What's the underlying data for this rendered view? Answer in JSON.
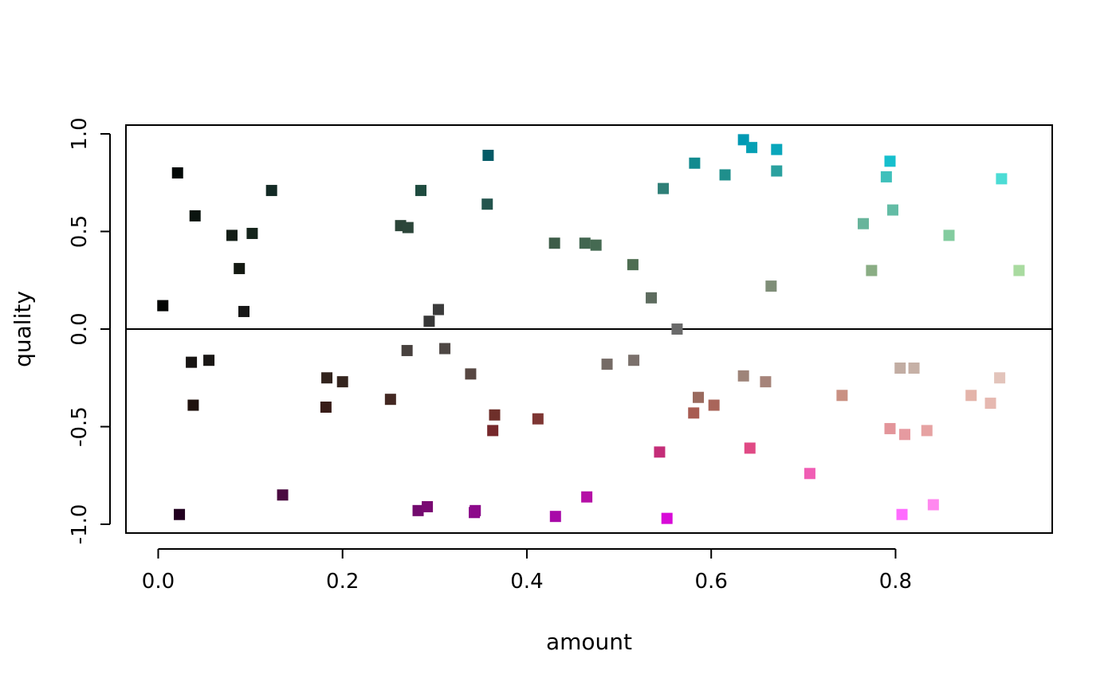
{
  "chart_data": {
    "type": "scatter",
    "title": "",
    "xlabel": "amount",
    "ylabel": "quality",
    "xlim": [
      -0.035,
      0.97
    ],
    "ylim": [
      -1.045,
      1.045
    ],
    "x_ticks": [
      0.0,
      0.2,
      0.4,
      0.6,
      0.8
    ],
    "x_tick_labels": [
      "0.0",
      "0.2",
      "0.4",
      "0.6",
      "0.8"
    ],
    "y_ticks": [
      -1.0,
      -0.5,
      0.0,
      0.5,
      1.0
    ],
    "y_tick_labels": [
      "-1.0",
      "-0.5",
      "0.0",
      "0.5",
      "1.0"
    ],
    "grid": false,
    "reference_line_y": 0,
    "marker": "square",
    "points": [
      {
        "x": 0.005,
        "y": 0.12,
        "color": "#020403"
      },
      {
        "x": 0.021,
        "y": 0.8,
        "color": "#030807"
      },
      {
        "x": 0.04,
        "y": 0.58,
        "color": "#0b140f"
      },
      {
        "x": 0.08,
        "y": 0.48,
        "color": "#131d16"
      },
      {
        "x": 0.088,
        "y": 0.31,
        "color": "#141912"
      },
      {
        "x": 0.093,
        "y": 0.09,
        "color": "#171717"
      },
      {
        "x": 0.102,
        "y": 0.49,
        "color": "#15241b"
      },
      {
        "x": 0.123,
        "y": 0.71,
        "color": "#132a25"
      },
      {
        "x": 0.263,
        "y": 0.53,
        "color": "#2b4438"
      },
      {
        "x": 0.271,
        "y": 0.52,
        "color": "#2c463a"
      },
      {
        "x": 0.285,
        "y": 0.71,
        "color": "#1e4b3f"
      },
      {
        "x": 0.294,
        "y": 0.04,
        "color": "#383838"
      },
      {
        "x": 0.304,
        "y": 0.1,
        "color": "#3b3b3b"
      },
      {
        "x": 0.358,
        "y": 0.89,
        "color": "#045a66"
      },
      {
        "x": 0.357,
        "y": 0.64,
        "color": "#24544d"
      },
      {
        "x": 0.43,
        "y": 0.44,
        "color": "#3d5c48"
      },
      {
        "x": 0.463,
        "y": 0.44,
        "color": "#426650"
      },
      {
        "x": 0.475,
        "y": 0.43,
        "color": "#456a52"
      },
      {
        "x": 0.515,
        "y": 0.33,
        "color": "#4e6e52"
      },
      {
        "x": 0.535,
        "y": 0.16,
        "color": "#5e6c5f"
      },
      {
        "x": 0.548,
        "y": 0.72,
        "color": "#2e7f77"
      },
      {
        "x": 0.563,
        "y": 0.0,
        "color": "#6a6a6a"
      },
      {
        "x": 0.582,
        "y": 0.85,
        "color": "#128a8f"
      },
      {
        "x": 0.615,
        "y": 0.79,
        "color": "#1f8f8c"
      },
      {
        "x": 0.635,
        "y": 0.97,
        "color": "#0099b3"
      },
      {
        "x": 0.644,
        "y": 0.93,
        "color": "#05a0b4"
      },
      {
        "x": 0.665,
        "y": 0.22,
        "color": "#7f8e78"
      },
      {
        "x": 0.671,
        "y": 0.92,
        "color": "#09a6bb"
      },
      {
        "x": 0.671,
        "y": 0.81,
        "color": "#2aa19f"
      },
      {
        "x": 0.765,
        "y": 0.54,
        "color": "#67b49b"
      },
      {
        "x": 0.774,
        "y": 0.3,
        "color": "#8aad84"
      },
      {
        "x": 0.79,
        "y": 0.78,
        "color": "#3fc0bb"
      },
      {
        "x": 0.794,
        "y": 0.86,
        "color": "#16bfcd"
      },
      {
        "x": 0.797,
        "y": 0.61,
        "color": "#63bca5"
      },
      {
        "x": 0.858,
        "y": 0.48,
        "color": "#83cc9f"
      },
      {
        "x": 0.915,
        "y": 0.77,
        "color": "#4cdcd5"
      },
      {
        "x": 0.934,
        "y": 0.3,
        "color": "#a9dba0"
      },
      {
        "x": 0.036,
        "y": -0.17,
        "color": "#171412"
      },
      {
        "x": 0.055,
        "y": -0.16,
        "color": "#1a1715"
      },
      {
        "x": 0.038,
        "y": -0.39,
        "color": "#1f110d"
      },
      {
        "x": 0.183,
        "y": -0.25,
        "color": "#32231d"
      },
      {
        "x": 0.2,
        "y": -0.27,
        "color": "#35251f"
      },
      {
        "x": 0.182,
        "y": -0.4,
        "color": "#381d18"
      },
      {
        "x": 0.252,
        "y": -0.36,
        "color": "#432822"
      },
      {
        "x": 0.27,
        "y": -0.11,
        "color": "#48413e"
      },
      {
        "x": 0.311,
        "y": -0.1,
        "color": "#4e4744"
      },
      {
        "x": 0.339,
        "y": -0.23,
        "color": "#574742"
      },
      {
        "x": 0.365,
        "y": -0.44,
        "color": "#6e2f2a"
      },
      {
        "x": 0.363,
        "y": -0.52,
        "color": "#76282b"
      },
      {
        "x": 0.412,
        "y": -0.46,
        "color": "#7e3633"
      },
      {
        "x": 0.487,
        "y": -0.18,
        "color": "#756b66"
      },
      {
        "x": 0.516,
        "y": -0.16,
        "color": "#7b716c"
      },
      {
        "x": 0.586,
        "y": -0.35,
        "color": "#9a6a5e"
      },
      {
        "x": 0.581,
        "y": -0.43,
        "color": "#a85c52"
      },
      {
        "x": 0.603,
        "y": -0.39,
        "color": "#a9655a"
      },
      {
        "x": 0.635,
        "y": -0.24,
        "color": "#9e8479"
      },
      {
        "x": 0.659,
        "y": -0.27,
        "color": "#a6847a"
      },
      {
        "x": 0.742,
        "y": -0.34,
        "color": "#c99082"
      },
      {
        "x": 0.805,
        "y": -0.2,
        "color": "#c2ada3"
      },
      {
        "x": 0.82,
        "y": -0.2,
        "color": "#c6b0a6"
      },
      {
        "x": 0.794,
        "y": -0.51,
        "color": "#e3959a"
      },
      {
        "x": 0.81,
        "y": -0.54,
        "color": "#e69aa0"
      },
      {
        "x": 0.834,
        "y": -0.52,
        "color": "#e6a2a2"
      },
      {
        "x": 0.882,
        "y": -0.34,
        "color": "#e4b4aa"
      },
      {
        "x": 0.903,
        "y": -0.38,
        "color": "#e6b8b0"
      },
      {
        "x": 0.913,
        "y": -0.25,
        "color": "#e3c4bb"
      },
      {
        "x": 0.544,
        "y": -0.63,
        "color": "#c42d78"
      },
      {
        "x": 0.642,
        "y": -0.61,
        "color": "#e04a85"
      },
      {
        "x": 0.707,
        "y": -0.74,
        "color": "#f05db4"
      },
      {
        "x": 0.023,
        "y": -0.95,
        "color": "#21001f"
      },
      {
        "x": 0.135,
        "y": -0.85,
        "color": "#4a0a40"
      },
      {
        "x": 0.282,
        "y": -0.93,
        "color": "#720a6e"
      },
      {
        "x": 0.292,
        "y": -0.91,
        "color": "#790a72"
      },
      {
        "x": 0.343,
        "y": -0.94,
        "color": "#8a0a8a"
      },
      {
        "x": 0.344,
        "y": -0.93,
        "color": "#8c0a8a"
      },
      {
        "x": 0.431,
        "y": -0.96,
        "color": "#a80aa8"
      },
      {
        "x": 0.465,
        "y": -0.86,
        "color": "#b50fa6"
      },
      {
        "x": 0.552,
        "y": -0.97,
        "color": "#d80ad8"
      },
      {
        "x": 0.807,
        "y": -0.95,
        "color": "#ff6bff"
      },
      {
        "x": 0.841,
        "y": -0.9,
        "color": "#ff88ef"
      }
    ]
  }
}
